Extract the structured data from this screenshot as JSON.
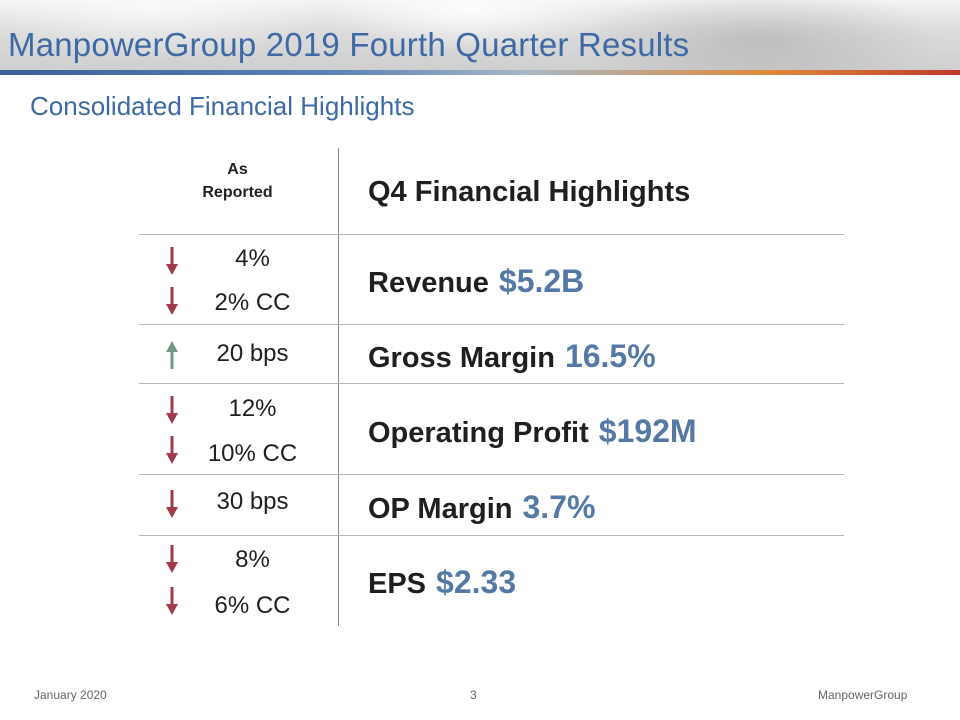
{
  "header": {
    "title": "ManpowerGroup 2019 Fourth Quarter Results",
    "subtitle": "Consolidated Financial Highlights"
  },
  "table": {
    "column_header": {
      "line1": "As",
      "line2": "Reported"
    },
    "title_header": "Q4 Financial  Highlights",
    "rows": [
      {
        "metric": "Revenue",
        "value": "$5.2B",
        "changes": [
          {
            "text": "4%",
            "direction": "down"
          },
          {
            "text": "2% CC",
            "direction": "down"
          }
        ]
      },
      {
        "metric": "Gross Margin",
        "value": "16.5%",
        "changes": [
          {
            "text": "20 bps",
            "direction": "up"
          }
        ]
      },
      {
        "metric": "Operating Profit",
        "value": "$192M",
        "changes": [
          {
            "text": "12%",
            "direction": "down"
          },
          {
            "text": "10% CC",
            "direction": "down"
          }
        ]
      },
      {
        "metric": "OP Margin",
        "value": "3.7%",
        "changes": [
          {
            "text": "30 bps",
            "direction": "down"
          }
        ]
      },
      {
        "metric": "EPS",
        "value": "$2.33",
        "changes": [
          {
            "text": "8%",
            "direction": "down"
          },
          {
            "text": "6% CC",
            "direction": "down"
          }
        ]
      }
    ]
  },
  "colors": {
    "title_blue": "#3d6aa6",
    "value_blue": "#5579a6",
    "arrow_down": "#a33a4a",
    "arrow_up": "#6f9a86"
  },
  "footer": {
    "date": "January 2020",
    "page": "3",
    "company": "ManpowerGroup"
  }
}
